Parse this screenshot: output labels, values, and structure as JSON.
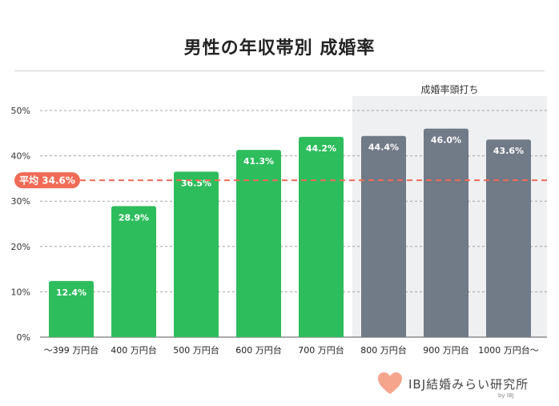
{
  "title": "男性の年収帯別 成婚率",
  "highlight_label": "成婚率頭打ち",
  "average_label": "平均 34.6%",
  "logo_text": "IBJ結婚みらい研究所",
  "logo_by": "by IBJ",
  "colors": {
    "green": "#2dbd5c",
    "gray": "#717a87",
    "highlight_bg": "#eef0f2",
    "average_line": "#f06b57",
    "grid": "#a0a0a0",
    "heart": "#f5a58c"
  },
  "chart_data": {
    "type": "bar",
    "categories": [
      "〜399 万円台",
      "400 万円台",
      "500 万円台",
      "600 万円台",
      "700 万円台",
      "800 万円台",
      "900 万円台",
      "1000 万円台〜"
    ],
    "values": [
      12.4,
      28.9,
      36.5,
      41.3,
      44.2,
      44.4,
      46.0,
      43.6
    ],
    "value_labels": [
      "12.4%",
      "28.9%",
      "36.5%",
      "41.3%",
      "44.2%",
      "44.4%",
      "46.0%",
      "43.6%"
    ],
    "bar_colors": [
      "green",
      "green",
      "green",
      "green",
      "green",
      "gray",
      "gray",
      "gray"
    ],
    "average": 34.6,
    "ylim": [
      0,
      50
    ],
    "yticks": [
      0,
      10,
      20,
      30,
      40,
      50
    ],
    "ytick_labels": [
      "0%",
      "10%",
      "20%",
      "30%",
      "40%",
      "50%"
    ],
    "highlight_from_category": "800 万円台",
    "xlabel": "",
    "ylabel": "",
    "grid": true
  }
}
